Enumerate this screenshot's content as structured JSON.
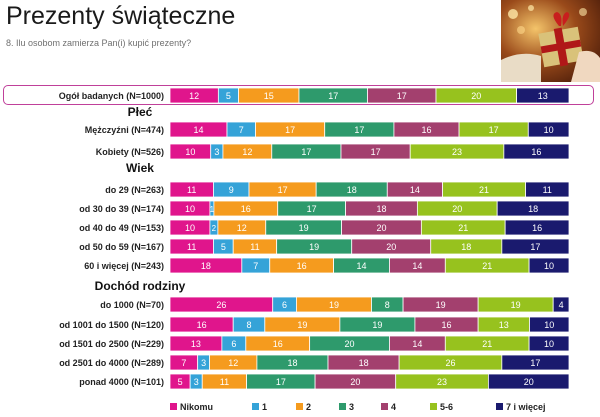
{
  "title": "Prezenty świąteczne",
  "subtitle": "8. Ilu osobom zamierza Pan(i) kupić prezenty?",
  "photo_icon": "christmas-gift-photo",
  "chart_data": {
    "type": "bar",
    "stacked": true,
    "orientation": "horizontal",
    "normalized_percent": true,
    "xlim": [
      0,
      100
    ],
    "series": [
      {
        "name": "Nikomu",
        "color": "#e0158c"
      },
      {
        "name": "1",
        "color": "#35a3d8"
      },
      {
        "name": "2",
        "color": "#f59b1e"
      },
      {
        "name": "3",
        "color": "#2e9a6c"
      },
      {
        "name": "4",
        "color": "#a3406e"
      },
      {
        "name": "5-6",
        "color": "#97c21e"
      },
      {
        "name": "7 i więcej",
        "color": "#1a1a6e"
      }
    ],
    "groups": [
      {
        "heading": "",
        "rows": [
          {
            "label": "Ogół badanych (N=1000)",
            "values": [
              12,
              5,
              15,
              17,
              17,
              20,
              13
            ]
          }
        ]
      },
      {
        "heading": "Płeć",
        "rows": [
          {
            "label": "Mężczyźni (N=474)",
            "values": [
              14,
              7,
              17,
              17,
              16,
              17,
              10
            ]
          },
          {
            "label": "Kobiety (N=526)",
            "values": [
              10,
              3,
              12,
              17,
              17,
              23,
              16
            ]
          }
        ]
      },
      {
        "heading": "Wiek",
        "rows": [
          {
            "label": "do 29 (N=263)",
            "values": [
              11,
              9,
              17,
              18,
              14,
              21,
              11
            ]
          },
          {
            "label": "od 30 do 39 (N=174)",
            "values": [
              10,
              1,
              16,
              17,
              18,
              20,
              18
            ]
          },
          {
            "label": "od 40 do 49 (N=153)",
            "values": [
              10,
              2,
              12,
              19,
              20,
              21,
              16
            ]
          },
          {
            "label": "od 50 do 59 (N=167)",
            "values": [
              11,
              5,
              11,
              19,
              20,
              18,
              17
            ]
          },
          {
            "label": "60 i więcej (N=243)",
            "values": [
              18,
              7,
              16,
              14,
              14,
              21,
              10
            ]
          }
        ]
      },
      {
        "heading": "Dochód rodziny",
        "rows": [
          {
            "label": "do 1000 (N=70)",
            "values": [
              26,
              6,
              19,
              8,
              19,
              19,
              4
            ]
          },
          {
            "label": "od 1001 do 1500 (N=120)",
            "values": [
              16,
              8,
              19,
              19,
              16,
              13,
              10
            ]
          },
          {
            "label": "od 1501 do 2500 (N=229)",
            "values": [
              13,
              6,
              16,
              20,
              14,
              21,
              10
            ]
          },
          {
            "label": "od 2501 do 4000 (N=289)",
            "values": [
              7,
              3,
              12,
              18,
              18,
              26,
              17
            ]
          },
          {
            "label": "ponad 4000 (N=101)",
            "values": [
              5,
              3,
              11,
              17,
              20,
              23,
              20
            ]
          }
        ]
      }
    ]
  }
}
